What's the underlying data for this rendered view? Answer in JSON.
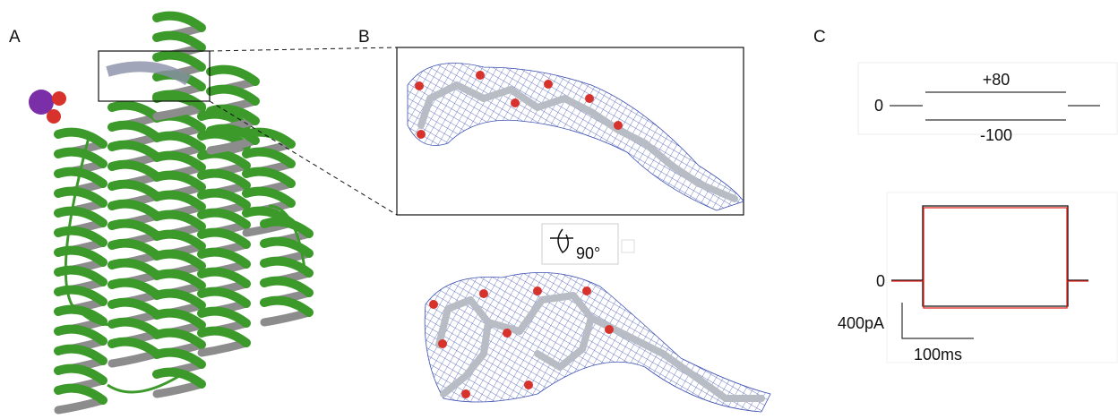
{
  "panels": [
    {
      "label": "A"
    },
    {
      "label": "B",
      "rotation": "90°"
    },
    {
      "label": "C",
      "protocol": {
        "baseline": "0",
        "upper": "+80",
        "lower": "-100"
      },
      "trace": {
        "baseline": "0",
        "scale_y": "400pA",
        "scale_x": "100ms"
      }
    }
  ]
}
